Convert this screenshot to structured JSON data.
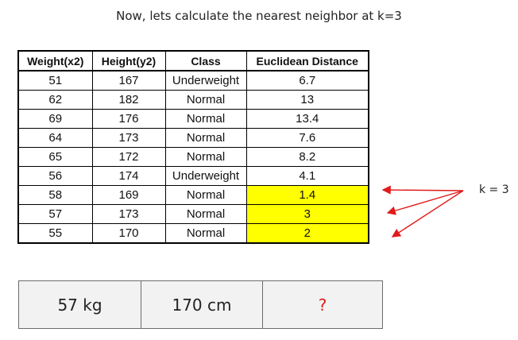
{
  "heading": "Now, lets calculate the nearest neighbor at k=3",
  "table": {
    "columns": [
      "Weight(x2)",
      "Height(y2)",
      "Class",
      "Euclidean Distance"
    ],
    "rows": [
      {
        "weight": "51",
        "height": "167",
        "class": "Underweight",
        "distance": "6.7",
        "highlighted": false
      },
      {
        "weight": "62",
        "height": "182",
        "class": "Normal",
        "distance": "13",
        "highlighted": false
      },
      {
        "weight": "69",
        "height": "176",
        "class": "Normal",
        "distance": "13.4",
        "highlighted": false
      },
      {
        "weight": "64",
        "height": "173",
        "class": "Normal",
        "distance": "7.6",
        "highlighted": false
      },
      {
        "weight": "65",
        "height": "172",
        "class": "Normal",
        "distance": "8.2",
        "highlighted": false
      },
      {
        "weight": "56",
        "height": "174",
        "class": "Underweight",
        "distance": "4.1",
        "highlighted": false
      },
      {
        "weight": "58",
        "height": "169",
        "class": "Normal",
        "distance": "1.4",
        "highlighted": true
      },
      {
        "weight": "57",
        "height": "173",
        "class": "Normal",
        "distance": "3",
        "highlighted": true
      },
      {
        "weight": "55",
        "height": "170",
        "class": "Normal",
        "distance": "2",
        "highlighted": true
      }
    ]
  },
  "k_label": "k = 3",
  "query": {
    "weight": "57 kg",
    "height": "170 cm",
    "class": "?"
  },
  "colors": {
    "highlight": "#ffff00",
    "arrow": "#e01b1b",
    "unknown": "#e01b1b",
    "query_background": "#f2f2f2"
  }
}
